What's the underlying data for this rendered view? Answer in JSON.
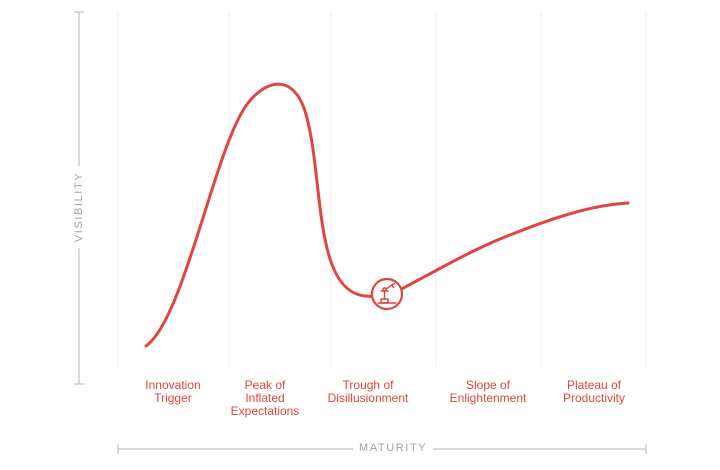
{
  "axes": {
    "x_label": "MATURITY",
    "y_label": "VISIBILITY"
  },
  "phases": [
    {
      "label": "Innovation\nTrigger"
    },
    {
      "label": "Peak of\nInflated\nExpectations"
    },
    {
      "label": "Trough of\nDisillusionment"
    },
    {
      "label": "Slope of\nEnlightenment"
    },
    {
      "label": "Plateau of\nProductivity"
    }
  ],
  "marker": {
    "icon": "robot-arm-icon",
    "phase": "Trough of Disillusionment"
  },
  "colors": {
    "curve": "#e0463f",
    "axis": "#b5b5b5",
    "gridline": "#ececec",
    "text": "#e0463f",
    "axis_text": "#a3a3a3"
  }
}
